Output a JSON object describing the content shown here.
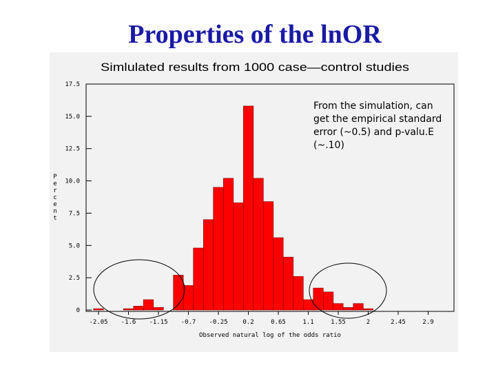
{
  "slide": {
    "title": "Properties of the lnOR"
  },
  "annotation": {
    "text": "From the simulation, can get the empirical standard error (~0.5) and p-valu.E (~.10)"
  },
  "colors": {
    "title": "#1a1aa6",
    "bar_fill": "#ff0000",
    "bar_stroke": "#800000",
    "panel_background": "#f2f2f2",
    "ellipse_stroke": "#000000"
  },
  "chart_data": {
    "type": "bar",
    "title": "Simlulated results from 1000 case—control studies",
    "xlabel": "Observed natural log of the odds ratio",
    "ylabel": "Percent",
    "ylim": [
      0,
      17.5
    ],
    "xlim": [
      -2.05,
      2.9
    ],
    "grid": false,
    "y_ticks": [
      "0",
      "2.5",
      "5.0",
      "7.5",
      "10.0",
      "12.5",
      "15.0",
      "17.5"
    ],
    "x_ticks": [
      "-2.05",
      "-1.6",
      "-1.15",
      "-0.7",
      "-0.25",
      "0.2",
      "0.65",
      "1.1",
      "1.55",
      "2",
      "2.45",
      "2.9"
    ],
    "bin_width": 0.15,
    "bins": [
      {
        "x": -2.05,
        "value": 0.1
      },
      {
        "x": -1.6,
        "value": 0.1
      },
      {
        "x": -1.45,
        "value": 0.3
      },
      {
        "x": -1.3,
        "value": 0.8
      },
      {
        "x": -1.15,
        "value": 0.2
      },
      {
        "x": -0.85,
        "value": 2.7
      },
      {
        "x": -0.7,
        "value": 1.9
      },
      {
        "x": -0.55,
        "value": 4.8
      },
      {
        "x": -0.4,
        "value": 7.0
      },
      {
        "x": -0.25,
        "value": 9.5
      },
      {
        "x": -0.1,
        "value": 10.2
      },
      {
        "x": 0.05,
        "value": 8.3
      },
      {
        "x": 0.2,
        "value": 15.8
      },
      {
        "x": 0.35,
        "value": 10.2
      },
      {
        "x": 0.5,
        "value": 8.4
      },
      {
        "x": 0.65,
        "value": 5.6
      },
      {
        "x": 0.8,
        "value": 4.1
      },
      {
        "x": 0.95,
        "value": 2.6
      },
      {
        "x": 1.1,
        "value": 0.8
      },
      {
        "x": 1.25,
        "value": 1.7
      },
      {
        "x": 1.4,
        "value": 1.4
      },
      {
        "x": 1.55,
        "value": 0.5
      },
      {
        "x": 1.7,
        "value": 0.2
      },
      {
        "x": 1.85,
        "value": 0.5
      },
      {
        "x": 2.0,
        "value": 0.1
      }
    ]
  }
}
